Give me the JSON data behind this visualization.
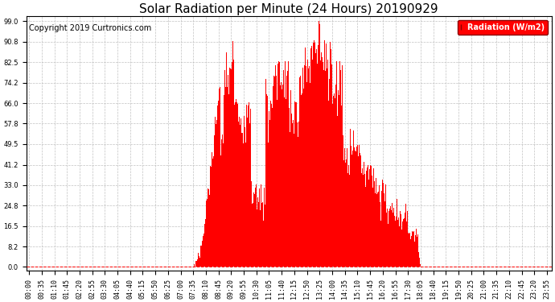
{
  "title": "Solar Radiation per Minute (24 Hours) 20190929",
  "copyright": "Copyright 2019 Curtronics.com",
  "legend_label": "Radiation (W/m2)",
  "yticks": [
    0.0,
    8.2,
    16.5,
    24.8,
    33.0,
    41.2,
    49.5,
    57.8,
    66.0,
    74.2,
    82.5,
    90.8,
    99.0
  ],
  "ylim": [
    -1.5,
    101.0
  ],
  "bar_color": "#FF0000",
  "background_color": "#FFFFFF",
  "grid_color": "#BBBBBB",
  "legend_bg": "#FF0000",
  "legend_text_color": "#FFFFFF",
  "title_fontsize": 11,
  "copyright_fontsize": 7,
  "tick_fontsize": 6,
  "n_minutes": 1440,
  "tick_step": 35,
  "sunrise": 455,
  "sunset": 1085
}
